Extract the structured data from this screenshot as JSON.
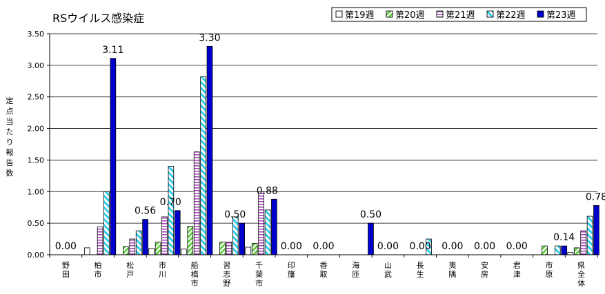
{
  "chart_data": {
    "type": "bar",
    "title": "RSウイルス感染症",
    "ylabel": "定点当たり報告数",
    "xlabel": "",
    "ylim": [
      0,
      3.5
    ],
    "yticks": [
      "0.00",
      "0.50",
      "1.00",
      "1.50",
      "2.00",
      "2.50",
      "3.00",
      "3.50"
    ],
    "grid": true,
    "legend_position": "top-right",
    "categories": [
      "野田",
      "柏市",
      "松戸",
      "市川",
      "船橋市",
      "習志野",
      "千葉市",
      "印旛",
      "香取",
      "海匝",
      "山武",
      "長生",
      "夷隅",
      "安房",
      "君津",
      "市原",
      "県全体"
    ],
    "series": [
      {
        "name": "第19週",
        "pattern": "plain",
        "color": "#ffffff",
        "values": [
          0,
          0.11,
          0,
          0.1,
          0.09,
          0,
          0.12,
          0,
          0,
          0,
          0,
          0,
          0,
          0,
          0,
          0,
          0.04
        ]
      },
      {
        "name": "第20週",
        "pattern": "diagonal",
        "color": "#66dd44",
        "values": [
          0,
          0,
          0.13,
          0.2,
          0.45,
          0.2,
          0.18,
          0,
          0,
          0,
          0,
          0,
          0,
          0,
          0,
          0.14,
          0.11
        ]
      },
      {
        "name": "第21週",
        "pattern": "hbars",
        "color": "#9933aa",
        "values": [
          0,
          0.44,
          0.25,
          0.6,
          1.63,
          0.2,
          1.0,
          0,
          0,
          0,
          0,
          0,
          0,
          0,
          0,
          0,
          0.38
        ]
      },
      {
        "name": "第22週",
        "pattern": "cyan-diag",
        "color": "#33ccee",
        "values": [
          0,
          1.0,
          0.38,
          1.4,
          2.82,
          0.6,
          0.71,
          0,
          0,
          0,
          0,
          0.25,
          0,
          0,
          0,
          0.14,
          0.61
        ]
      },
      {
        "name": "第23週",
        "pattern": "solid",
        "color": "#0000cc",
        "values": [
          0,
          3.11,
          0.56,
          0.7,
          3.3,
          0.5,
          0.88,
          0,
          0,
          0.5,
          0,
          0,
          0,
          0,
          0,
          0.14,
          0.78
        ]
      }
    ],
    "data_labels": [
      "0.00",
      "3.11",
      "0.56",
      "0.70",
      "3.30",
      "0.50",
      "0.88",
      "0.00",
      "0.00",
      "0.50",
      "0.00",
      "0.00",
      "0.00",
      "0.00",
      "0.00",
      "0.14",
      "0.78"
    ]
  }
}
